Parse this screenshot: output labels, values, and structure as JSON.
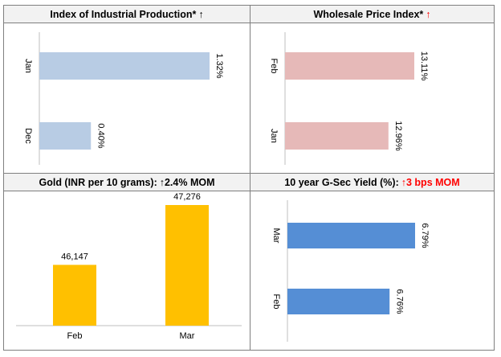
{
  "panels": {
    "iip": {
      "title": "Index of Industrial Production*",
      "arrow": "↑",
      "arrow_color": "#000000"
    },
    "wpi": {
      "title": "Wholesale Price Index*",
      "arrow": "↑",
      "arrow_color": "#ff0000"
    },
    "gold": {
      "title": "Gold (INR per 10 grams):",
      "arrow": "↑",
      "change": "2.4% MOM",
      "change_color": "#000000"
    },
    "gsec": {
      "title": "10 year G-Sec Yield (%):",
      "arrow": "↑",
      "change": "3 bps MOM",
      "change_color": "#ff0000"
    }
  },
  "chart_data": [
    {
      "id": "iip",
      "type": "bar",
      "orientation": "horizontal",
      "categories": [
        "Jan",
        "Dec"
      ],
      "values": [
        1.32,
        0.4
      ],
      "labels": [
        "1.32%",
        "0.40%"
      ],
      "xlim": [
        0,
        1.32
      ],
      "color": "#b8cce4",
      "grid": false
    },
    {
      "id": "wpi",
      "type": "bar",
      "orientation": "horizontal",
      "categories": [
        "Feb",
        "Jan"
      ],
      "values": [
        13.11,
        12.96
      ],
      "labels": [
        "13.11%",
        "12.96%"
      ],
      "color": "#e6b9b8",
      "grid": false
    },
    {
      "id": "gold",
      "type": "bar",
      "orientation": "vertical",
      "categories": [
        "Feb",
        "Mar"
      ],
      "values": [
        46147,
        47276
      ],
      "labels": [
        "46,147",
        "47,276"
      ],
      "color": "#ffc000",
      "grid": false
    },
    {
      "id": "gsec",
      "type": "bar",
      "orientation": "horizontal",
      "categories": [
        "Mar",
        "Feb"
      ],
      "values": [
        6.79,
        6.76
      ],
      "labels": [
        "6.79%",
        "6.76%"
      ],
      "color": "#558ed5",
      "grid": false
    }
  ]
}
